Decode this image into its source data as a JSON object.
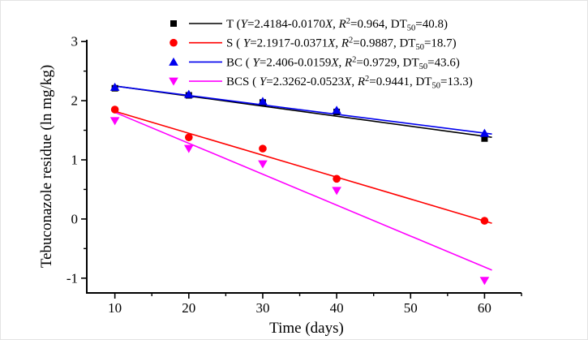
{
  "figure": {
    "background": "#ffffff",
    "border_color": "#e3e3e3"
  },
  "chart_data": {
    "type": "scatter",
    "title": "",
    "xlabel": "Time (days)",
    "ylabel": "Tebuconazole residue (ln mg/kg)",
    "x": [
      10,
      20,
      30,
      40,
      60
    ],
    "x_axis": {
      "label": "Time (days)",
      "min": 6.2,
      "max": 65,
      "ticks": [
        10,
        20,
        30,
        40,
        50,
        60
      ],
      "minor_ticks": [
        15,
        25,
        35,
        45,
        55,
        65
      ]
    },
    "y_axis": {
      "label": "Tebuconazole residue (ln mg/kg)",
      "min": -1.25,
      "max": 3.03,
      "ticks": [
        3,
        2,
        1,
        0,
        -1
      ],
      "minor_ticks": [
        2.5,
        1.5,
        0.5,
        -0.5
      ]
    },
    "grid": false,
    "legend_position": "top-inside",
    "series": [
      {
        "name": "T",
        "color": "#000000",
        "marker": "square",
        "values": [
          2.21,
          2.09,
          1.97,
          1.81,
          1.36
        ],
        "fit": {
          "intercept": 2.4184,
          "slope": -0.017,
          "x_start": 10,
          "x_end": 61
        },
        "equation": "Y=2.4184-0.0170X",
        "r2": "0.964",
        "dt50": "40.8"
      },
      {
        "name": "S",
        "color": "#ff0000",
        "marker": "circle",
        "values": [
          1.85,
          1.38,
          1.19,
          0.68,
          -0.03
        ],
        "fit": {
          "intercept": 2.1917,
          "slope": -0.0371,
          "x_start": 10,
          "x_end": 61
        },
        "equation": "Y=2.1917-0.0371X",
        "r2": "0.9887",
        "dt50": "18.7"
      },
      {
        "name": "BC",
        "color": "#0000ee",
        "marker": "triangle-up",
        "values": [
          2.23,
          2.11,
          1.99,
          1.84,
          1.45
        ],
        "fit": {
          "intercept": 2.406,
          "slope": -0.0159,
          "x_start": 10,
          "x_end": 61
        },
        "equation": "Y=2.406-0.0159X",
        "r2": "0.9729",
        "dt50": "43.6"
      },
      {
        "name": "BCS",
        "color": "#ff00ff",
        "marker": "triangle-down",
        "values": [
          1.66,
          1.19,
          0.93,
          0.48,
          -1.04
        ],
        "fit": {
          "intercept": 2.3262,
          "slope": -0.0523,
          "x_start": 10,
          "x_end": 61
        },
        "equation": "Y=2.3262-0.0523X",
        "r2": "0.9441",
        "dt50": "13.3"
      }
    ],
    "legend": [
      {
        "series": "T",
        "segments": [
          {
            "t": "T (",
            "s": "plain"
          },
          {
            "t": "Y",
            "s": "italic"
          },
          {
            "t": "=2.4184-0.0170",
            "s": "plain"
          },
          {
            "t": "X",
            "s": "italic"
          },
          {
            "t": ", ",
            "s": "plain"
          },
          {
            "t": "R",
            "s": "italic"
          },
          {
            "t": "2",
            "s": "sup"
          },
          {
            "t": "=0.964, DT",
            "s": "plain"
          },
          {
            "t": "50",
            "s": "sub"
          },
          {
            "t": "=40.8)",
            "s": "plain"
          }
        ]
      },
      {
        "series": "S",
        "segments": [
          {
            "t": "S ( ",
            "s": "plain"
          },
          {
            "t": "Y",
            "s": "italic"
          },
          {
            "t": "=2.1917-0.0371",
            "s": "plain"
          },
          {
            "t": "X",
            "s": "italic"
          },
          {
            "t": ", ",
            "s": "plain"
          },
          {
            "t": "R",
            "s": "italic"
          },
          {
            "t": "2",
            "s": "sup"
          },
          {
            "t": "=0.9887, DT",
            "s": "plain"
          },
          {
            "t": "50",
            "s": "sub"
          },
          {
            "t": "=18.7)",
            "s": "plain"
          }
        ]
      },
      {
        "series": "BC",
        "segments": [
          {
            "t": "BC ( ",
            "s": "plain"
          },
          {
            "t": "Y",
            "s": "italic"
          },
          {
            "t": "=2.406-0.0159",
            "s": "plain"
          },
          {
            "t": "X",
            "s": "italic"
          },
          {
            "t": ", ",
            "s": "plain"
          },
          {
            "t": "R",
            "s": "italic"
          },
          {
            "t": "2",
            "s": "sup"
          },
          {
            "t": "=0.9729, DT",
            "s": "plain"
          },
          {
            "t": "50",
            "s": "sub"
          },
          {
            "t": "=43.6)",
            "s": "plain"
          }
        ]
      },
      {
        "series": "BCS",
        "segments": [
          {
            "t": "BCS ( ",
            "s": "plain"
          },
          {
            "t": "Y",
            "s": "italic"
          },
          {
            "t": "=2.3262-0.0523",
            "s": "plain"
          },
          {
            "t": "X",
            "s": "italic"
          },
          {
            "t": ", ",
            "s": "plain"
          },
          {
            "t": "R",
            "s": "italic"
          },
          {
            "t": "2",
            "s": "sup"
          },
          {
            "t": "=0.9441, DT",
            "s": "plain"
          },
          {
            "t": "50",
            "s": "sub"
          },
          {
            "t": "=13.3)",
            "s": "plain"
          }
        ]
      }
    ]
  }
}
